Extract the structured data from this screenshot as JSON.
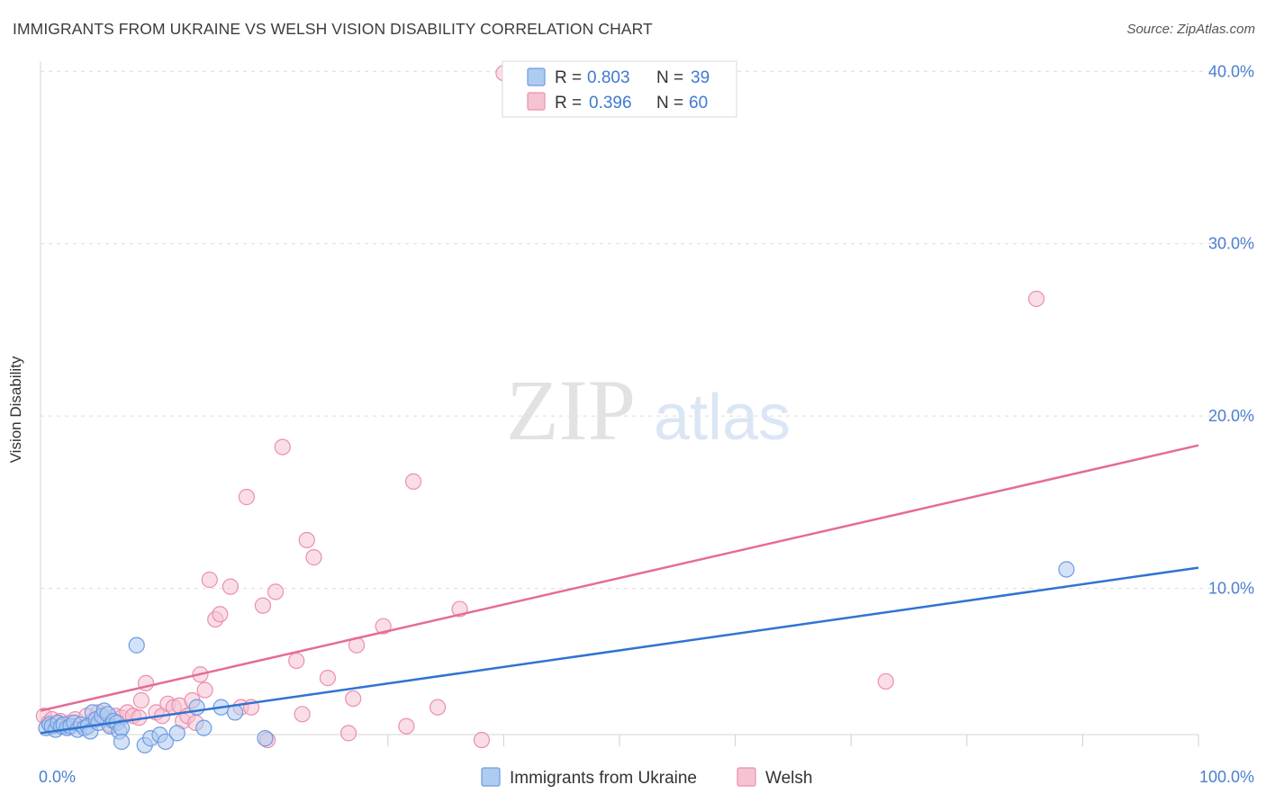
{
  "header": {
    "title": "IMMIGRANTS FROM UKRAINE VS WELSH VISION DISABILITY CORRELATION CHART",
    "source": "Source: ZipAtlas.com"
  },
  "watermark": {
    "zip": "ZIP",
    "atlas": "atlas"
  },
  "colors": {
    "blue_fill": "#aecbf0",
    "blue_stroke": "#6c9ce0",
    "blue_line": "#2f74d0",
    "pink_fill": "#f6c3d3",
    "pink_stroke": "#eb8fae",
    "pink_line": "#e66b98",
    "tick_label": "#4a7fd0"
  },
  "legend": {
    "rows": [
      {
        "r_label": "R = ",
        "r_value": "0.803",
        "n_label": "N = ",
        "n_value": "39"
      },
      {
        "r_label": "R = ",
        "r_value": "0.396",
        "n_label": "N = ",
        "n_value": "60"
      }
    ]
  },
  "bottom_legend": {
    "items": [
      {
        "label": "Immigrants from Ukraine"
      },
      {
        "label": "Welsh"
      }
    ]
  },
  "chart_data": {
    "type": "scatter",
    "title": "IMMIGRANTS FROM UKRAINE VS WELSH VISION DISABILITY CORRELATION CHART",
    "xlabel": "",
    "ylabel": "Vision Disability",
    "xlim": [
      0,
      100
    ],
    "ylim": [
      0,
      42
    ],
    "x_tick_labels": [
      "0.0%",
      "100.0%"
    ],
    "y_ticks": [
      10,
      20,
      30,
      40
    ],
    "y_tick_labels": [
      "10.0%",
      "20.0%",
      "30.0%",
      "40.0%"
    ],
    "grid": true,
    "series": [
      {
        "name": "Immigrants from Ukraine",
        "R": 0.803,
        "N": 39,
        "trend": {
          "x": [
            0,
            100
          ],
          "y": [
            1.6,
            11.2
          ]
        },
        "points": [
          [
            0.5,
            1.9
          ],
          [
            0.8,
            2.1
          ],
          [
            1.0,
            2.0
          ],
          [
            1.3,
            1.8
          ],
          [
            1.5,
            2.2
          ],
          [
            1.8,
            2.0
          ],
          [
            2.0,
            2.1
          ],
          [
            2.3,
            1.9
          ],
          [
            2.6,
            2.0
          ],
          [
            2.9,
            2.2
          ],
          [
            3.2,
            1.8
          ],
          [
            3.5,
            2.1
          ],
          [
            3.8,
            1.9
          ],
          [
            4.1,
            2.0
          ],
          [
            4.3,
            1.7
          ],
          [
            4.5,
            2.8
          ],
          [
            4.8,
            2.4
          ],
          [
            5.0,
            2.2
          ],
          [
            5.3,
            2.6
          ],
          [
            5.5,
            2.9
          ],
          [
            5.8,
            2.7
          ],
          [
            6.0,
            2.0
          ],
          [
            6.3,
            2.3
          ],
          [
            6.6,
            2.2
          ],
          [
            6.8,
            1.7
          ],
          [
            7.0,
            1.9
          ],
          [
            7.0,
            1.1
          ],
          [
            8.3,
            6.7
          ],
          [
            9.0,
            0.9
          ],
          [
            9.5,
            1.3
          ],
          [
            10.3,
            1.5
          ],
          [
            10.8,
            1.1
          ],
          [
            11.8,
            1.6
          ],
          [
            13.5,
            3.1
          ],
          [
            14.1,
            1.9
          ],
          [
            15.6,
            3.1
          ],
          [
            16.8,
            2.8
          ],
          [
            19.4,
            1.3
          ],
          [
            88.6,
            11.1
          ]
        ]
      },
      {
        "name": "Welsh",
        "R": 0.396,
        "N": 60,
        "trend": {
          "x": [
            0,
            100
          ],
          "y": [
            2.9,
            18.3
          ]
        },
        "points": [
          [
            0.3,
            2.6
          ],
          [
            0.7,
            2.2
          ],
          [
            1.0,
            2.4
          ],
          [
            1.3,
            2.1
          ],
          [
            1.7,
            2.3
          ],
          [
            2.0,
            2.0
          ],
          [
            2.5,
            2.2
          ],
          [
            3.0,
            2.4
          ],
          [
            3.5,
            2.1
          ],
          [
            4.0,
            2.6
          ],
          [
            4.5,
            2.3
          ],
          [
            5.0,
            2.8
          ],
          [
            5.5,
            2.4
          ],
          [
            6.0,
            2.1
          ],
          [
            6.5,
            2.6
          ],
          [
            7.0,
            2.5
          ],
          [
            7.5,
            2.8
          ],
          [
            8.0,
            2.6
          ],
          [
            8.5,
            2.5
          ],
          [
            8.7,
            3.5
          ],
          [
            9.1,
            4.5
          ],
          [
            10.0,
            2.8
          ],
          [
            10.5,
            2.6
          ],
          [
            11.0,
            3.3
          ],
          [
            11.5,
            3.1
          ],
          [
            12.0,
            3.2
          ],
          [
            12.3,
            2.3
          ],
          [
            12.7,
            2.6
          ],
          [
            13.1,
            3.5
          ],
          [
            13.4,
            2.2
          ],
          [
            13.8,
            5.0
          ],
          [
            14.2,
            4.1
          ],
          [
            14.6,
            10.5
          ],
          [
            15.1,
            8.2
          ],
          [
            15.5,
            8.5
          ],
          [
            16.4,
            10.1
          ],
          [
            17.3,
            3.1
          ],
          [
            17.8,
            15.3
          ],
          [
            18.2,
            3.1
          ],
          [
            19.2,
            9.0
          ],
          [
            19.6,
            1.2
          ],
          [
            20.3,
            9.8
          ],
          [
            20.9,
            18.2
          ],
          [
            22.1,
            5.8
          ],
          [
            22.6,
            2.7
          ],
          [
            23.0,
            12.8
          ],
          [
            23.6,
            11.8
          ],
          [
            24.8,
            4.8
          ],
          [
            26.6,
            1.6
          ],
          [
            27.0,
            3.6
          ],
          [
            27.3,
            6.7
          ],
          [
            29.6,
            7.8
          ],
          [
            31.6,
            2.0
          ],
          [
            32.2,
            16.2
          ],
          [
            34.3,
            3.1
          ],
          [
            36.2,
            8.8
          ],
          [
            38.1,
            1.2
          ],
          [
            40.0,
            39.9
          ],
          [
            73.0,
            4.6
          ],
          [
            86.0,
            26.8
          ]
        ]
      }
    ]
  }
}
